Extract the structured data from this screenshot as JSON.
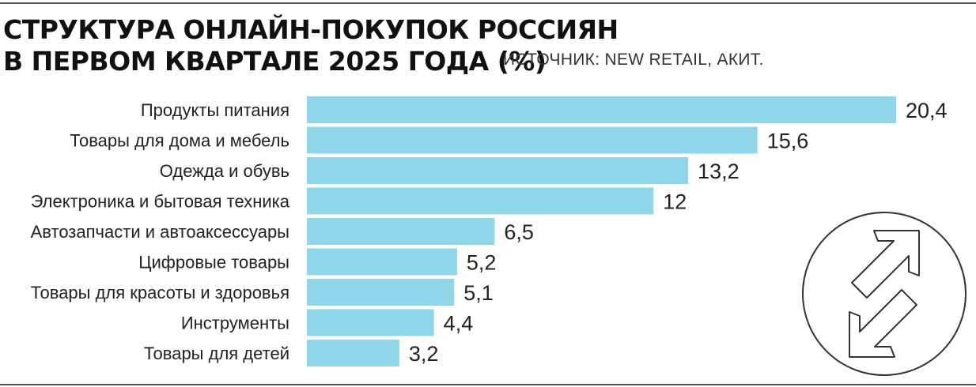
{
  "header": {
    "title_line1": "СТРУКТУРА ОНЛАЙН-ПОКУПОК РОССИЯН",
    "title_line2": "В ПЕРВОМ КВАРТАЛЕ 2025 ГОДА (%)",
    "source": "ИСТОЧНИК: NEW RETAIL, АКИТ."
  },
  "chart_data": {
    "type": "bar",
    "orientation": "horizontal",
    "title": "СТРУКТУРА ОНЛАЙН-ПОКУПОК РОССИЯН В ПЕРВОМ КВАРТАЛЕ 2025 ГОДА (%)",
    "categories": [
      "Продукты питания",
      "Товары для дома и мебель",
      "Одежда и обувь",
      "Электроника и бытовая техника",
      "Автозапчасти и автоаксессуары",
      "Цифровые товары",
      "Товары для красоты и здоровья",
      "Инструменты",
      "Товары для детей"
    ],
    "values": [
      20.4,
      15.6,
      13.2,
      12,
      6.5,
      5.2,
      5.1,
      4.4,
      3.2
    ],
    "value_labels": [
      "20,4",
      "15,6",
      "13,2",
      "12",
      "6,5",
      "5,2",
      "5,1",
      "4,4",
      "3,2"
    ],
    "xlim": [
      0,
      20.4
    ],
    "grid": false,
    "legend": "none",
    "bar_color": "#8fd6e8"
  },
  "colors": {
    "bar": "#8fd6e8",
    "text": "#222222",
    "logo": "#333333"
  },
  "logo": {
    "icon": "two-arrows-circle-icon"
  }
}
